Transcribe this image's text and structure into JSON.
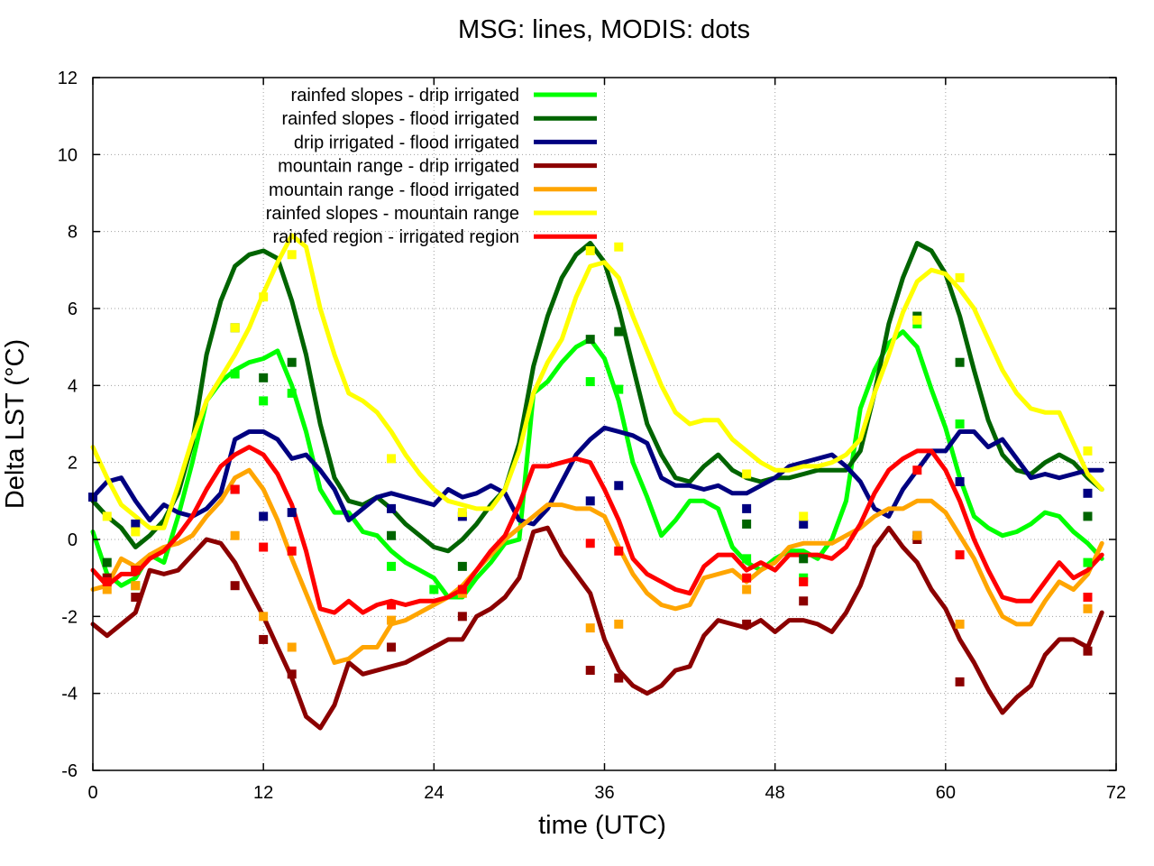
{
  "chart_data": {
    "type": "line",
    "title": "MSG: lines, MODIS: dots",
    "xlabel": "time (UTC)",
    "ylabel": "Delta LST (°C)",
    "xlim": [
      0,
      72
    ],
    "ylim": [
      -6,
      12
    ],
    "xticks": [
      "0",
      "12",
      "24",
      "36",
      "48",
      "60",
      "72"
    ],
    "yticks": [
      "-6",
      "-4",
      "-2",
      "0",
      "2",
      "4",
      "6",
      "8",
      "10",
      "12"
    ],
    "grid": true,
    "legend_position": "top",
    "series": [
      {
        "name": "rainfed slopes - drip irrigated",
        "color": "#00ff00",
        "x": [
          0,
          1,
          2,
          3,
          4,
          5,
          6,
          7,
          8,
          9,
          10,
          11,
          12,
          13,
          14,
          15,
          16,
          17,
          18,
          19,
          20,
          21,
          22,
          23,
          24,
          25,
          26,
          27,
          28,
          29,
          30,
          31,
          32,
          33,
          34,
          35,
          36,
          37,
          38,
          39,
          40,
          41,
          42,
          43,
          44,
          45,
          46,
          47,
          48,
          49,
          50,
          51,
          52,
          53,
          54,
          55,
          56,
          57,
          58,
          59,
          60,
          61,
          62,
          63,
          64,
          65,
          66,
          67,
          68,
          69,
          70,
          71
        ],
        "y": [
          0.2,
          -0.9,
          -1.2,
          -1.0,
          -0.4,
          -0.6,
          0.6,
          2.0,
          3.6,
          4.1,
          4.4,
          4.6,
          4.7,
          4.9,
          4.0,
          2.8,
          1.3,
          0.7,
          0.7,
          0.2,
          0.1,
          -0.3,
          -0.6,
          -0.8,
          -1.0,
          -1.5,
          -1.5,
          -1.0,
          -0.6,
          -0.1,
          0.0,
          3.8,
          4.1,
          4.6,
          5.0,
          5.2,
          4.7,
          3.6,
          2.0,
          1.1,
          0.1,
          0.5,
          1.0,
          1.0,
          0.8,
          -0.2,
          -0.6,
          -0.8,
          -0.5,
          -0.3,
          -0.3,
          -0.5,
          0.0,
          1.0,
          3.4,
          4.4,
          5.1,
          5.4,
          5.0,
          3.9,
          2.9,
          1.6,
          0.6,
          0.3,
          0.1,
          0.2,
          0.4,
          0.7,
          0.6,
          0.2,
          -0.1,
          -0.5
        ],
        "modis_x": [
          1,
          3,
          10,
          12,
          14,
          21,
          24,
          35,
          37,
          46,
          50,
          58,
          61,
          70
        ],
        "modis_y": [
          -1.0,
          -1.2,
          4.3,
          3.6,
          3.8,
          -0.7,
          -1.3,
          4.1,
          3.9,
          -0.5,
          -1.0,
          5.6,
          3.0,
          -0.6
        ]
      },
      {
        "name": "rainfed slopes - flood irrigated",
        "color": "#006400",
        "x": [
          0,
          1,
          2,
          3,
          4,
          5,
          6,
          7,
          8,
          9,
          10,
          11,
          12,
          13,
          14,
          15,
          16,
          17,
          18,
          19,
          20,
          21,
          22,
          23,
          24,
          25,
          26,
          27,
          28,
          29,
          30,
          31,
          32,
          33,
          34,
          35,
          36,
          37,
          38,
          39,
          40,
          41,
          42,
          43,
          44,
          45,
          46,
          47,
          48,
          49,
          50,
          51,
          52,
          53,
          54,
          55,
          56,
          57,
          58,
          59,
          60,
          61,
          62,
          63,
          64,
          65,
          66,
          67,
          68,
          69,
          70,
          71
        ],
        "y": [
          1.0,
          0.6,
          0.3,
          -0.2,
          0.1,
          0.5,
          1.2,
          2.5,
          4.8,
          6.2,
          7.1,
          7.4,
          7.5,
          7.3,
          6.2,
          4.8,
          3.0,
          1.6,
          1.0,
          0.9,
          1.1,
          0.8,
          0.4,
          0.1,
          -0.2,
          -0.3,
          0.0,
          0.4,
          0.9,
          1.3,
          2.5,
          4.5,
          5.8,
          6.8,
          7.4,
          7.7,
          7.2,
          6.0,
          4.5,
          3.0,
          2.2,
          1.6,
          1.5,
          1.9,
          2.2,
          1.8,
          1.6,
          1.5,
          1.6,
          1.6,
          1.7,
          1.8,
          1.8,
          1.8,
          2.3,
          3.8,
          5.6,
          6.8,
          7.7,
          7.5,
          6.9,
          5.8,
          4.4,
          3.1,
          2.2,
          1.8,
          1.7,
          2.0,
          2.2,
          2.0,
          1.6,
          1.3
        ],
        "modis_x": [
          1,
          3,
          10,
          12,
          14,
          21,
          26,
          35,
          37,
          46,
          50,
          58,
          61,
          70
        ],
        "modis_y": [
          -0.6,
          -0.8,
          5.5,
          4.2,
          4.6,
          0.1,
          -0.7,
          5.2,
          5.4,
          0.4,
          -0.5,
          5.8,
          4.6,
          0.6
        ]
      },
      {
        "name": "drip irrigated - flood irrigated",
        "color": "#000080",
        "x": [
          0,
          1,
          2,
          3,
          4,
          5,
          6,
          7,
          8,
          9,
          10,
          11,
          12,
          13,
          14,
          15,
          16,
          17,
          18,
          19,
          20,
          21,
          22,
          23,
          24,
          25,
          26,
          27,
          28,
          29,
          30,
          31,
          32,
          33,
          34,
          35,
          36,
          37,
          38,
          39,
          40,
          41,
          42,
          43,
          44,
          45,
          46,
          47,
          48,
          49,
          50,
          51,
          52,
          53,
          54,
          55,
          56,
          57,
          58,
          59,
          60,
          61,
          62,
          63,
          64,
          65,
          66,
          67,
          68,
          69,
          70,
          71
        ],
        "y": [
          1.1,
          1.5,
          1.6,
          1.0,
          0.5,
          0.9,
          0.7,
          0.6,
          0.8,
          1.2,
          2.6,
          2.8,
          2.8,
          2.6,
          2.1,
          2.2,
          1.8,
          1.3,
          0.5,
          0.8,
          1.1,
          1.2,
          1.1,
          1.0,
          0.9,
          1.3,
          1.1,
          1.2,
          1.4,
          1.2,
          0.5,
          0.4,
          0.8,
          1.5,
          2.2,
          2.6,
          2.9,
          2.8,
          2.7,
          2.5,
          1.6,
          1.4,
          1.4,
          1.3,
          1.4,
          1.2,
          1.2,
          1.4,
          1.6,
          1.9,
          2.0,
          2.1,
          2.2,
          1.9,
          1.5,
          0.8,
          0.6,
          1.3,
          1.8,
          2.3,
          2.3,
          2.8,
          2.8,
          2.4,
          2.6,
          2.1,
          1.6,
          1.7,
          1.6,
          1.7,
          1.8,
          1.8
        ],
        "modis_x": [
          0,
          3,
          10,
          12,
          14,
          21,
          26,
          35,
          37,
          46,
          50,
          58,
          61,
          70
        ],
        "modis_y": [
          1.1,
          0.4,
          1.3,
          0.6,
          0.7,
          0.8,
          0.6,
          1.0,
          1.4,
          0.8,
          0.4,
          0.1,
          1.5,
          1.2
        ]
      },
      {
        "name": "mountain range - drip irrigated",
        "color": "#8b0000",
        "x": [
          0,
          1,
          2,
          3,
          4,
          5,
          6,
          7,
          8,
          9,
          10,
          11,
          12,
          13,
          14,
          15,
          16,
          17,
          18,
          19,
          20,
          21,
          22,
          23,
          24,
          25,
          26,
          27,
          28,
          29,
          30,
          31,
          32,
          33,
          34,
          35,
          36,
          37,
          38,
          39,
          40,
          41,
          42,
          43,
          44,
          45,
          46,
          47,
          48,
          49,
          50,
          51,
          52,
          53,
          54,
          55,
          56,
          57,
          58,
          59,
          60,
          61,
          62,
          63,
          64,
          65,
          66,
          67,
          68,
          69,
          70,
          71
        ],
        "y": [
          -2.2,
          -2.5,
          -2.2,
          -1.9,
          -0.8,
          -0.9,
          -0.8,
          -0.4,
          0.0,
          -0.1,
          -0.6,
          -1.3,
          -2.0,
          -2.8,
          -3.6,
          -4.6,
          -4.9,
          -4.3,
          -3.2,
          -3.5,
          -3.4,
          -3.3,
          -3.2,
          -3.0,
          -2.8,
          -2.6,
          -2.6,
          -2.0,
          -1.8,
          -1.5,
          -1.0,
          0.2,
          0.3,
          -0.4,
          -0.9,
          -1.4,
          -2.6,
          -3.4,
          -3.8,
          -4.0,
          -3.8,
          -3.4,
          -3.3,
          -2.5,
          -2.1,
          -2.2,
          -2.3,
          -2.1,
          -2.4,
          -2.1,
          -2.1,
          -2.2,
          -2.4,
          -1.9,
          -1.2,
          -0.2,
          0.3,
          -0.2,
          -0.6,
          -1.3,
          -1.8,
          -2.6,
          -3.2,
          -3.9,
          -4.5,
          -4.1,
          -3.8,
          -3.0,
          -2.6,
          -2.6,
          -2.8,
          -1.9
        ],
        "modis_x": [
          1,
          3,
          10,
          12,
          14,
          21,
          26,
          35,
          37,
          46,
          50,
          58,
          61,
          70
        ],
        "modis_y": [
          -1.0,
          -1.5,
          -1.2,
          -2.6,
          -3.5,
          -2.8,
          -2.0,
          -3.4,
          -3.6,
          -2.2,
          -1.6,
          0.0,
          -3.7,
          -2.9
        ]
      },
      {
        "name": "mountain range - flood irrigated",
        "color": "#ffa500",
        "x": [
          0,
          1,
          2,
          3,
          4,
          5,
          6,
          7,
          8,
          9,
          10,
          11,
          12,
          13,
          14,
          15,
          16,
          17,
          18,
          19,
          20,
          21,
          22,
          23,
          24,
          25,
          26,
          27,
          28,
          29,
          30,
          31,
          32,
          33,
          34,
          35,
          36,
          37,
          38,
          39,
          40,
          41,
          42,
          43,
          44,
          45,
          46,
          47,
          48,
          49,
          50,
          51,
          52,
          53,
          54,
          55,
          56,
          57,
          58,
          59,
          60,
          61,
          62,
          63,
          64,
          65,
          66,
          67,
          68,
          69,
          70,
          71
        ],
        "y": [
          -1.3,
          -1.2,
          -0.5,
          -0.7,
          -0.4,
          -0.2,
          -0.1,
          0.1,
          0.6,
          1.0,
          1.6,
          1.8,
          1.3,
          0.5,
          -0.5,
          -1.4,
          -2.3,
          -3.2,
          -3.1,
          -2.8,
          -2.8,
          -2.2,
          -2.1,
          -1.9,
          -1.7,
          -1.5,
          -1.2,
          -0.8,
          -0.4,
          0.0,
          0.3,
          0.6,
          0.9,
          0.9,
          0.8,
          0.8,
          0.6,
          -0.2,
          -0.9,
          -1.4,
          -1.7,
          -1.8,
          -1.7,
          -1.0,
          -0.9,
          -0.8,
          -1.1,
          -0.8,
          -0.6,
          -0.2,
          -0.1,
          -0.1,
          -0.1,
          0.1,
          0.3,
          0.6,
          0.8,
          0.8,
          1.0,
          1.0,
          0.7,
          0.1,
          -0.5,
          -1.3,
          -2.0,
          -2.2,
          -2.2,
          -1.6,
          -1.1,
          -1.3,
          -0.9,
          -0.1
        ],
        "modis_x": [
          1,
          3,
          10,
          12,
          14,
          21,
          26,
          35,
          37,
          46,
          50,
          58,
          61,
          70
        ],
        "modis_y": [
          -1.3,
          -1.2,
          0.1,
          -2.0,
          -2.8,
          -2.1,
          -1.4,
          -2.3,
          -2.2,
          -1.3,
          -1.1,
          0.1,
          -2.2,
          -1.8
        ]
      },
      {
        "name": "rainfed slopes - mountain range",
        "color": "#ffff00",
        "x": [
          0,
          1,
          2,
          3,
          4,
          5,
          6,
          7,
          8,
          9,
          10,
          11,
          12,
          13,
          14,
          15,
          16,
          17,
          18,
          19,
          20,
          21,
          22,
          23,
          24,
          25,
          26,
          27,
          28,
          29,
          30,
          31,
          32,
          33,
          34,
          35,
          36,
          37,
          38,
          39,
          40,
          41,
          42,
          43,
          44,
          45,
          46,
          47,
          48,
          49,
          50,
          51,
          52,
          53,
          54,
          55,
          56,
          57,
          58,
          59,
          60,
          61,
          62,
          63,
          64,
          65,
          66,
          67,
          68,
          69,
          70,
          71
        ],
        "y": [
          2.4,
          1.6,
          0.9,
          0.6,
          0.3,
          0.3,
          1.4,
          2.6,
          3.6,
          4.2,
          4.8,
          5.5,
          6.4,
          7.2,
          7.9,
          7.6,
          6.0,
          4.8,
          3.8,
          3.6,
          3.3,
          2.8,
          2.2,
          1.7,
          1.3,
          1.0,
          0.9,
          0.8,
          0.8,
          1.3,
          2.3,
          3.8,
          4.6,
          5.2,
          6.3,
          7.1,
          7.2,
          6.8,
          5.8,
          4.9,
          4.0,
          3.3,
          3.0,
          3.1,
          3.1,
          2.6,
          2.3,
          2.0,
          1.8,
          1.8,
          1.9,
          1.9,
          2.0,
          2.2,
          2.6,
          3.8,
          4.8,
          5.9,
          6.7,
          7.0,
          6.9,
          6.5,
          6.0,
          5.2,
          4.4,
          3.8,
          3.4,
          3.3,
          3.3,
          2.5,
          1.7,
          1.3
        ],
        "modis_x": [
          1,
          3,
          10,
          12,
          14,
          21,
          26,
          35,
          37,
          46,
          50,
          58,
          61,
          70
        ],
        "modis_y": [
          0.6,
          0.2,
          5.5,
          6.3,
          7.4,
          2.1,
          0.7,
          7.5,
          7.6,
          1.7,
          0.6,
          5.7,
          6.8,
          2.3
        ]
      },
      {
        "name": "rainfed region - irrigated region",
        "color": "#ff0000",
        "x": [
          0,
          1,
          2,
          3,
          4,
          5,
          6,
          7,
          8,
          9,
          10,
          11,
          12,
          13,
          14,
          15,
          16,
          17,
          18,
          19,
          20,
          21,
          22,
          23,
          24,
          25,
          26,
          27,
          28,
          29,
          30,
          31,
          32,
          33,
          34,
          35,
          36,
          37,
          38,
          39,
          40,
          41,
          42,
          43,
          44,
          45,
          46,
          47,
          48,
          49,
          50,
          51,
          52,
          53,
          54,
          55,
          56,
          57,
          58,
          59,
          60,
          61,
          62,
          63,
          64,
          65,
          66,
          67,
          68,
          69,
          70,
          71
        ],
        "y": [
          -0.8,
          -1.2,
          -0.9,
          -0.9,
          -0.5,
          -0.3,
          0.1,
          0.6,
          1.3,
          1.9,
          2.2,
          2.4,
          2.2,
          1.7,
          0.9,
          -0.3,
          -1.8,
          -1.9,
          -1.6,
          -1.9,
          -1.7,
          -1.6,
          -1.7,
          -1.6,
          -1.6,
          -1.5,
          -1.3,
          -0.8,
          -0.3,
          0.1,
          0.9,
          1.9,
          1.9,
          2.0,
          2.1,
          2.0,
          1.3,
          0.5,
          -0.5,
          -0.9,
          -1.1,
          -1.3,
          -1.4,
          -0.7,
          -0.4,
          -0.4,
          -0.8,
          -0.6,
          -0.8,
          -0.4,
          -0.4,
          -0.4,
          -0.5,
          -0.2,
          0.4,
          1.2,
          1.8,
          2.1,
          2.3,
          2.3,
          1.8,
          1.0,
          0.0,
          -0.8,
          -1.5,
          -1.6,
          -1.6,
          -1.1,
          -0.6,
          -1.0,
          -0.8,
          -0.4
        ],
        "modis_x": [
          1,
          3,
          10,
          12,
          14,
          21,
          26,
          35,
          37,
          46,
          50,
          58,
          61,
          70
        ],
        "modis_y": [
          -1.1,
          -0.8,
          1.3,
          -0.2,
          -0.3,
          -1.7,
          -1.3,
          -0.1,
          -0.3,
          -1.0,
          -1.1,
          1.8,
          -0.4,
          -1.5
        ]
      }
    ]
  }
}
